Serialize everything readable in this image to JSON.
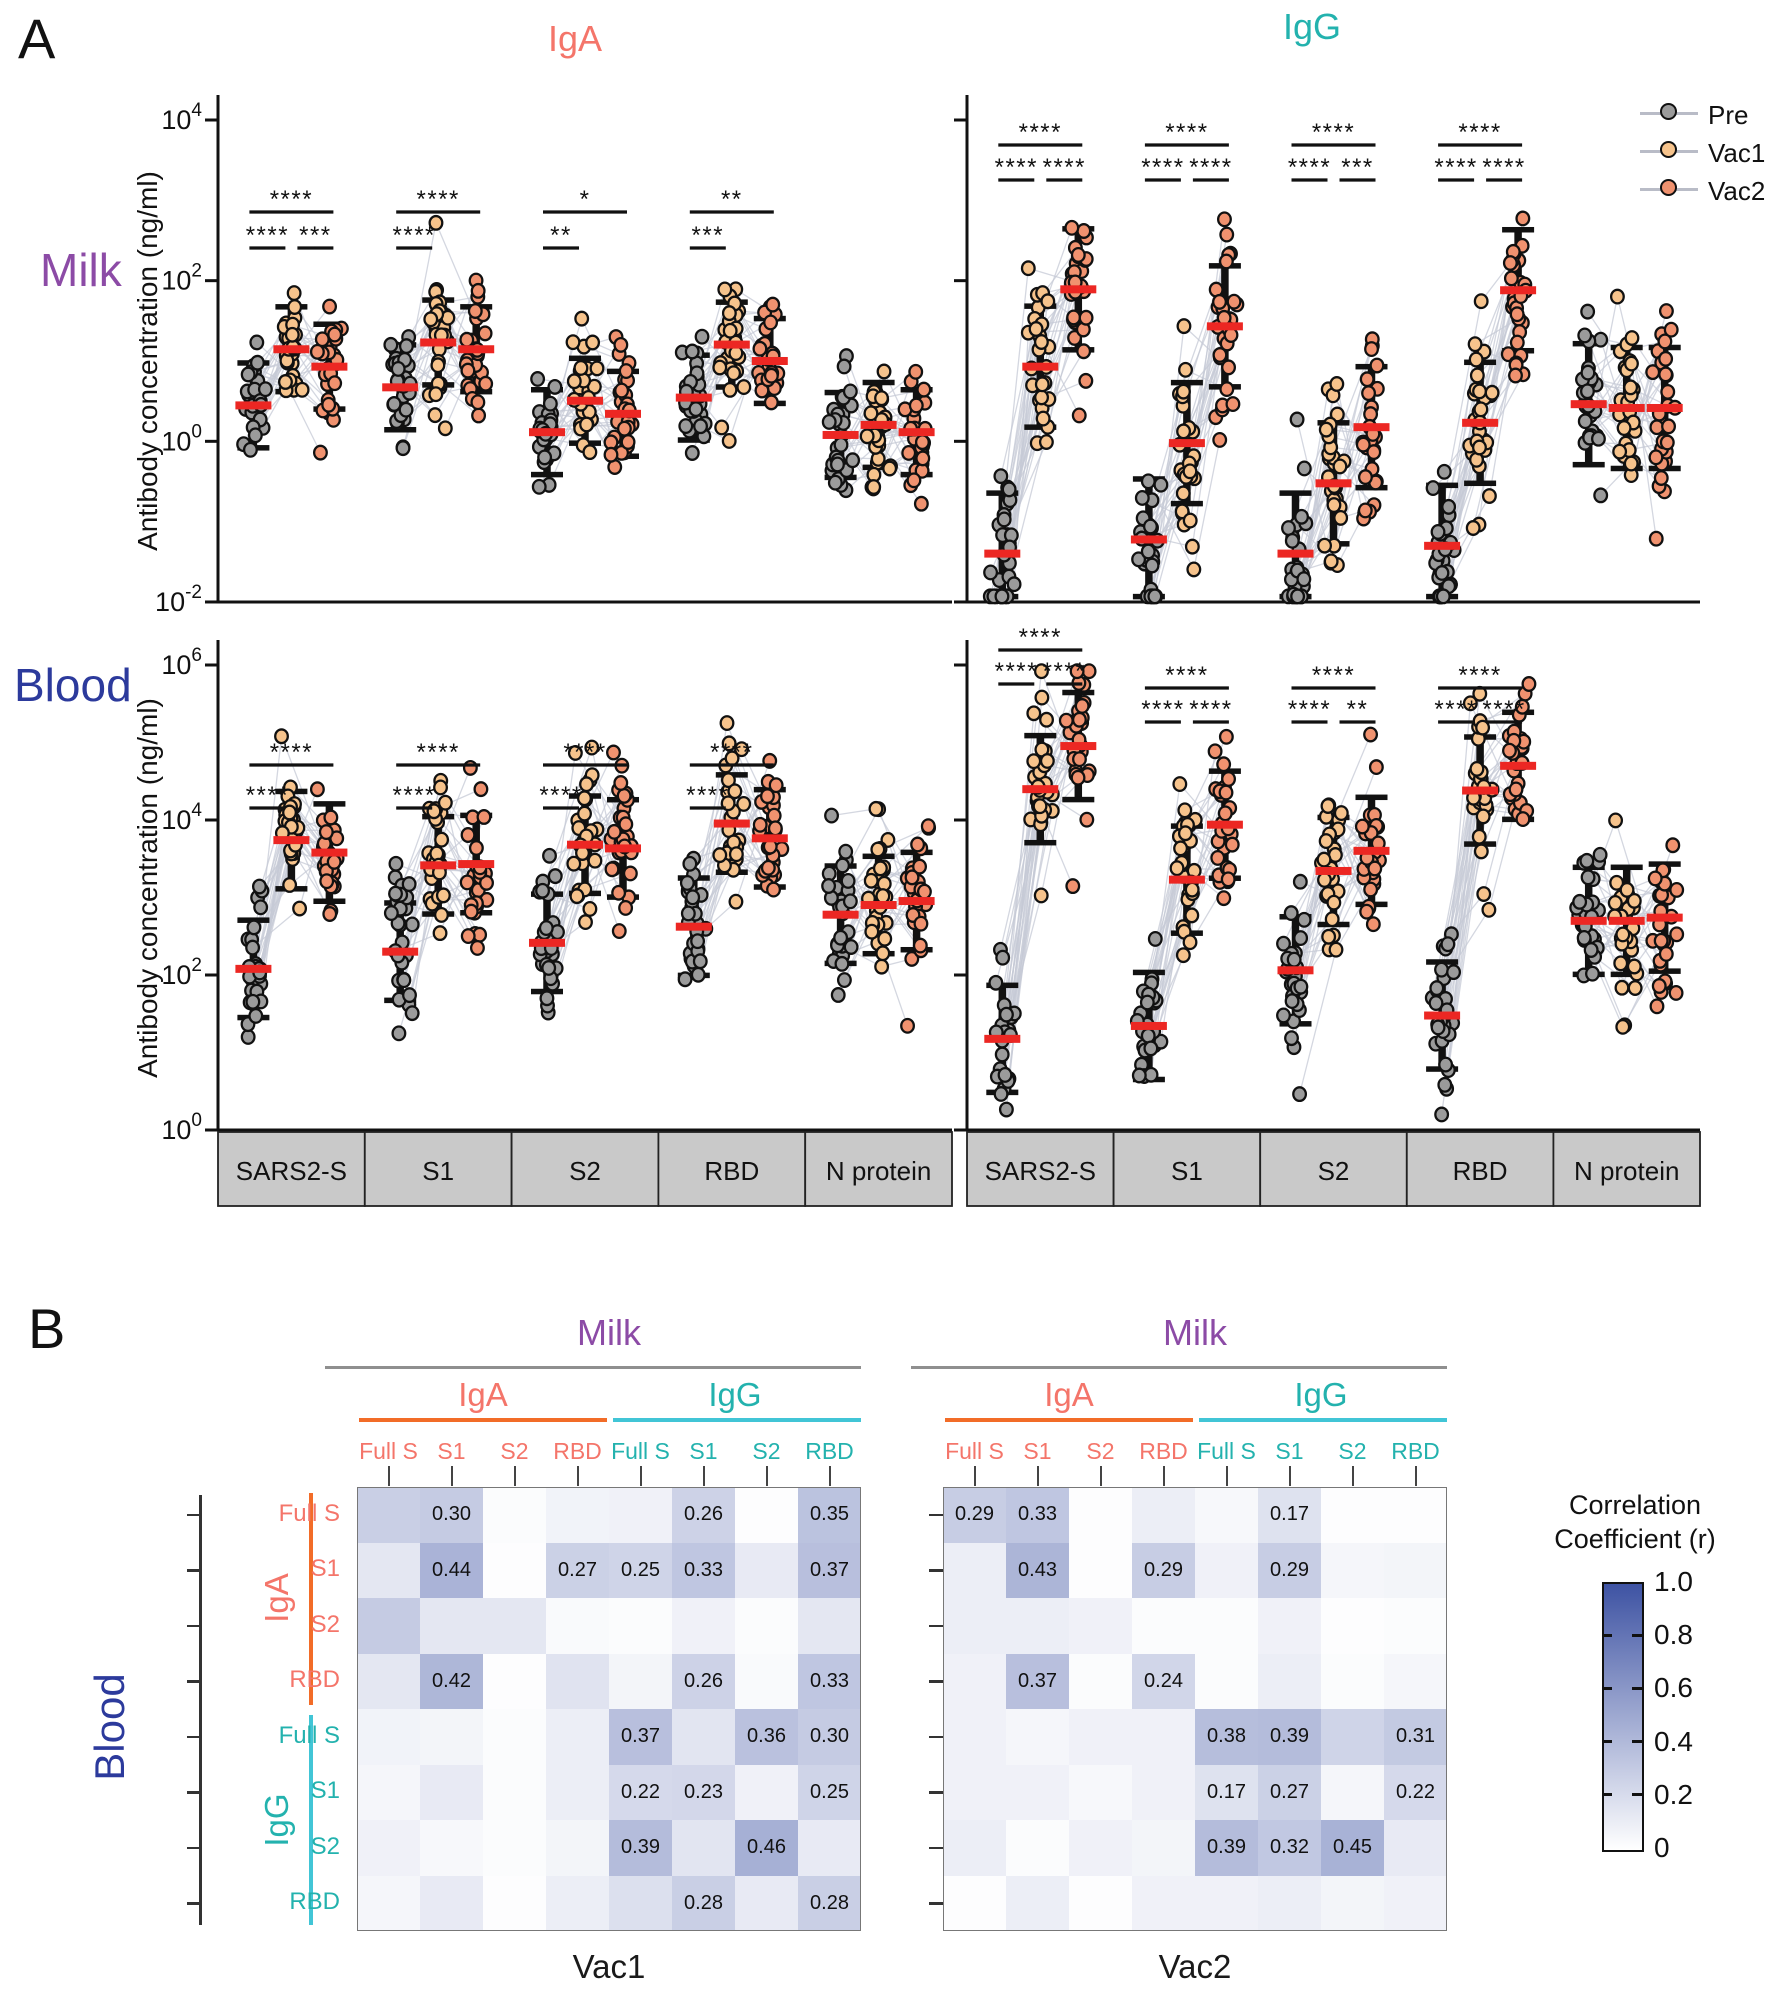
{
  "figure": {
    "panel_a_label": "A",
    "panel_b_label": "B"
  },
  "chart_data": {
    "panel_a": {
      "type": "scatter",
      "description": "Paired dot plots of antibody concentration before and after vaccination",
      "column_titles": [
        {
          "text": "IgA",
          "color": "#f4756a"
        },
        {
          "text": "IgG",
          "color": "#23b2ae"
        }
      ],
      "row_titles": [
        {
          "text": "Milk",
          "color": "#8c4ba6"
        },
        {
          "text": "Blood",
          "color": "#2c3a9c"
        }
      ],
      "ylabel": "Antibody concentration (ng/ml)",
      "legend": [
        {
          "label": "Pre",
          "color": "#9b9b9b"
        },
        {
          "label": "Vac1",
          "color": "#f6c38c"
        },
        {
          "label": "Vac2",
          "color": "#f0926f"
        }
      ],
      "categories": [
        "SARS2-S",
        "S1",
        "S2",
        "RBD",
        "N protein"
      ],
      "groups": [
        "Pre",
        "Vac1",
        "Vac2"
      ],
      "n_per_group": 28,
      "median_color": "#ec2723",
      "pair_line_color": "#c6cad6",
      "panels": [
        {
          "id": "milk-iga",
          "row": "Milk",
          "isotype": "IgA",
          "ylim": [
            0.01,
            10000
          ],
          "yticks": [
            4,
            2,
            0,
            -2
          ],
          "log_sd": 0.42,
          "medians": {
            "Pre": [
              2.8,
              4.7,
              1.3,
              3.5,
              1.2
            ],
            "Vac1": [
              14,
              17,
              3.2,
              16,
              1.6
            ],
            "Vac2": [
              8.5,
              14,
              2.2,
              10,
              1.3
            ]
          },
          "sig": [
            {
              "pre_vac1": "****",
              "pre_vac2": "****",
              "vac1_vac2": "***"
            },
            {
              "pre_vac1": "****",
              "pre_vac2": "****",
              "vac1_vac2": null
            },
            {
              "pre_vac1": "**",
              "pre_vac2": "*",
              "vac1_vac2": null
            },
            {
              "pre_vac1": "***",
              "pre_vac2": "**",
              "vac1_vac2": null
            },
            null
          ]
        },
        {
          "id": "milk-igg",
          "row": "Milk",
          "isotype": "IgG",
          "ylim": [
            0.01,
            10000
          ],
          "yticks": [
            4,
            2,
            0,
            -2
          ],
          "log_sd": 0.6,
          "medians": {
            "Pre": [
              0.04,
              0.06,
              0.04,
              0.05,
              2.9
            ],
            "Vac1": [
              8.5,
              0.95,
              0.3,
              1.7,
              2.6
            ],
            "Vac2": [
              78,
              27,
              1.5,
              76,
              2.6
            ]
          },
          "sig": [
            {
              "pre_vac1": "****",
              "pre_vac2": "****",
              "vac1_vac2": "****"
            },
            {
              "pre_vac1": "****",
              "pre_vac2": "****",
              "vac1_vac2": "****"
            },
            {
              "pre_vac1": "****",
              "pre_vac2": "****",
              "vac1_vac2": "***"
            },
            {
              "pre_vac1": "****",
              "pre_vac2": "****",
              "vac1_vac2": "****"
            },
            null
          ]
        },
        {
          "id": "blood-iga",
          "row": "Blood",
          "isotype": "IgA",
          "ylim": [
            1,
            1000000
          ],
          "yticks": [
            6,
            4,
            2,
            0
          ],
          "log_sd": 0.5,
          "medians": {
            "Pre": [
              120,
              200,
              260,
              420,
              600
            ],
            "Vac1": [
              5500,
              2600,
              4800,
              9000,
              800
            ],
            "Vac2": [
              3800,
              2700,
              4300,
              5800,
              900
            ]
          },
          "sig": [
            {
              "pre_vac1": "****",
              "pre_vac2": "****",
              "vac1_vac2": null
            },
            {
              "pre_vac1": "****",
              "pre_vac2": "****",
              "vac1_vac2": null
            },
            {
              "pre_vac1": "****",
              "pre_vac2": "****",
              "vac1_vac2": null
            },
            {
              "pre_vac1": "****",
              "pre_vac2": "****",
              "vac1_vac2": null
            },
            null
          ]
        },
        {
          "id": "blood-igg",
          "row": "Blood",
          "isotype": "IgG",
          "ylim": [
            1,
            1000000
          ],
          "yticks": [
            6,
            4,
            2,
            0
          ],
          "log_sd": 0.55,
          "medians": {
            "Pre": [
              15,
              22,
              115,
              30,
              500
            ],
            "Vac1": [
              25000,
              1700,
              2200,
              24000,
              500
            ],
            "Vac2": [
              90000,
              8700,
              4000,
              50000,
              550
            ]
          },
          "sig": [
            {
              "pre_vac1": "****",
              "pre_vac2": "****",
              "vac1_vac2": "****"
            },
            {
              "pre_vac1": "****",
              "pre_vac2": "****",
              "vac1_vac2": "****"
            },
            {
              "pre_vac1": "****",
              "pre_vac2": "****",
              "vac1_vac2": "**"
            },
            {
              "pre_vac1": "****",
              "pre_vac2": "****",
              "vac1_vac2": "****"
            },
            null
          ]
        }
      ]
    },
    "panel_b": {
      "type": "heatmap",
      "row_axis": {
        "label": "Blood",
        "color": "#2c3a9c",
        "isotypes": [
          {
            "label": "IgA",
            "color": "#f4756a",
            "line_color": "#f26c28",
            "antigens": [
              "Full S",
              "S1",
              "S2",
              "RBD"
            ]
          },
          {
            "label": "IgG",
            "color": "#23b2ae",
            "line_color": "#41c5d6",
            "antigens": [
              "Full S",
              "S1",
              "S2",
              "RBD"
            ]
          }
        ]
      },
      "col_axis": {
        "label": "Milk",
        "color": "#8c4ba6",
        "isotypes": [
          {
            "label": "IgA",
            "color": "#f4756a",
            "line_color": "#f26c28",
            "antigens": [
              "Full S",
              "S1",
              "S2",
              "RBD"
            ]
          },
          {
            "label": "IgG",
            "color": "#23b2ae",
            "line_color": "#41c5d6",
            "antigens": [
              "Full S",
              "S1",
              "S2",
              "RBD"
            ]
          }
        ]
      },
      "maps": [
        {
          "title": "Vac1",
          "values": [
            [
              0.28,
              0.3,
              0.02,
              0.07,
              0.08,
              0.26,
              0.01,
              0.35
            ],
            [
              0.14,
              0.44,
              0.01,
              0.27,
              0.25,
              0.33,
              0.12,
              0.37
            ],
            [
              0.3,
              0.14,
              0.14,
              0.03,
              0.02,
              0.08,
              0.02,
              0.14
            ],
            [
              0.14,
              0.42,
              0.01,
              0.16,
              0.06,
              0.26,
              0.03,
              0.33
            ],
            [
              0.07,
              0.06,
              0.02,
              0.1,
              0.37,
              0.15,
              0.36,
              0.3
            ],
            [
              0.05,
              0.12,
              0.02,
              0.1,
              0.22,
              0.23,
              0.08,
              0.25
            ],
            [
              0.08,
              0.04,
              0.02,
              0.06,
              0.39,
              0.15,
              0.46,
              0.12
            ],
            [
              0.05,
              0.12,
              0.01,
              0.1,
              0.18,
              0.28,
              0.12,
              0.28
            ]
          ],
          "labels": [
            [
              "",
              "0.30",
              "",
              "",
              "",
              "0.26",
              "",
              "0.35"
            ],
            [
              "",
              "0.44",
              "",
              "0.27",
              "0.25",
              "0.33",
              "",
              "0.37"
            ],
            [
              "",
              "",
              "",
              "",
              "",
              "",
              "",
              ""
            ],
            [
              "",
              "0.42",
              "",
              "",
              "",
              "0.26",
              "",
              "0.33"
            ],
            [
              "",
              "",
              "",
              "",
              "0.37",
              "",
              "0.36",
              "0.30"
            ],
            [
              "",
              "",
              "",
              "",
              "0.22",
              "0.23",
              "",
              "0.25"
            ],
            [
              "",
              "",
              "",
              "",
              "0.39",
              "",
              "0.46",
              ""
            ],
            [
              "",
              "",
              "",
              "",
              "",
              "0.28",
              "",
              "0.28"
            ]
          ]
        },
        {
          "title": "Vac2",
          "values": [
            [
              0.29,
              0.33,
              0.01,
              0.1,
              0.04,
              0.17,
              0.01,
              0.01
            ],
            [
              0.1,
              0.43,
              0.01,
              0.29,
              0.08,
              0.29,
              0.05,
              0.06
            ],
            [
              0.1,
              0.1,
              0.08,
              0.02,
              0.02,
              0.08,
              0.01,
              0.02
            ],
            [
              0.08,
              0.37,
              0.02,
              0.24,
              0.02,
              0.1,
              0.02,
              0.05
            ],
            [
              0.08,
              0.05,
              0.08,
              0.08,
              0.38,
              0.39,
              0.25,
              0.31
            ],
            [
              0.08,
              0.08,
              0.04,
              0.08,
              0.17,
              0.27,
              0.05,
              0.22
            ],
            [
              0.1,
              0.02,
              0.08,
              0.06,
              0.39,
              0.32,
              0.45,
              0.12
            ],
            [
              0.01,
              0.1,
              0.01,
              0.08,
              0.08,
              0.1,
              0.06,
              0.08
            ]
          ],
          "labels": [
            [
              "0.29",
              "0.33",
              "",
              "",
              "",
              "0.17",
              "",
              ""
            ],
            [
              "",
              "0.43",
              "",
              "0.29",
              "",
              "0.29",
              "",
              ""
            ],
            [
              "",
              "",
              "",
              "",
              "",
              "",
              "",
              ""
            ],
            [
              "",
              "0.37",
              "",
              "0.24",
              "",
              "",
              "",
              ""
            ],
            [
              "",
              "",
              "",
              "",
              "0.38",
              "0.39",
              "",
              "0.31"
            ],
            [
              "",
              "",
              "",
              "",
              "0.17",
              "0.27",
              "",
              "0.22"
            ],
            [
              "",
              "",
              "",
              "",
              "0.39",
              "0.32",
              "0.45",
              ""
            ],
            [
              "",
              "",
              "",
              "",
              "",
              "",
              "",
              ""
            ]
          ]
        }
      ],
      "colorbar": {
        "title_lines": [
          "Correlation",
          "Coefficient (r)"
        ],
        "ticks": [
          "1.0",
          "0.8",
          "0.6",
          "0.4",
          "0.2",
          "0"
        ],
        "min_color": "#ffffff",
        "max_color": "#3e53a3"
      }
    }
  }
}
